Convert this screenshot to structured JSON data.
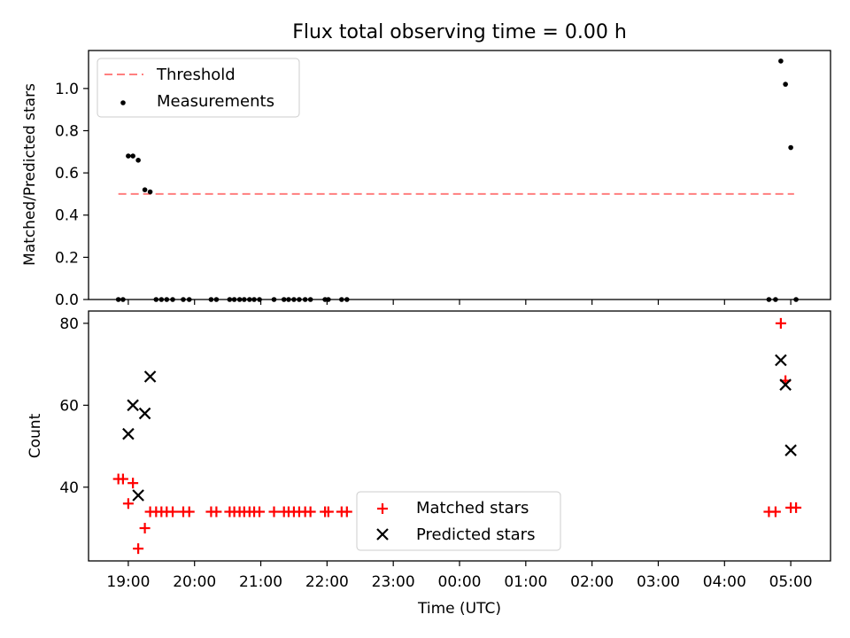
{
  "title": "Flux total observing time = 0.00 h",
  "colors": {
    "threshold": "#ff7f7f",
    "measurements": "#000000",
    "matched": "#ff0000",
    "predicted": "#000000"
  },
  "chart_data": [
    {
      "type": "scatter",
      "ylabel": "Matched/Predicted stars",
      "xlim": [
        18.4,
        29.6
      ],
      "ylim": [
        0,
        1.18
      ],
      "yticks": [
        "0.0",
        "0.2",
        "0.4",
        "0.6",
        "0.8",
        "1.0"
      ],
      "ytick_values": [
        0,
        0.2,
        0.4,
        0.6,
        0.8,
        1.0
      ],
      "legend": {
        "placement": "top-left",
        "entries": [
          "Threshold",
          "Measurements"
        ]
      },
      "threshold": {
        "name": "Threshold",
        "value": 0.5,
        "x_range": [
          18.85,
          29.05
        ]
      },
      "series": [
        {
          "name": "Measurements",
          "x": [
            18.85,
            18.92,
            19.0,
            19.07,
            19.15,
            19.25,
            19.33,
            19.42,
            19.5,
            19.58,
            19.67,
            19.83,
            19.92,
            20.25,
            20.33,
            20.53,
            20.6,
            20.68,
            20.75,
            20.83,
            20.9,
            20.98,
            21.2,
            21.35,
            21.42,
            21.5,
            21.58,
            21.67,
            21.75,
            21.97,
            22.02,
            22.22,
            22.3,
            28.67,
            28.77,
            28.85,
            28.92,
            29.0,
            29.08
          ],
          "y": [
            0,
            0,
            0.68,
            0.68,
            0.66,
            0.52,
            0.51,
            0,
            0,
            0,
            0,
            0,
            0,
            0,
            0,
            0,
            0,
            0,
            0,
            0,
            0,
            0,
            0,
            0,
            0,
            0,
            0,
            0,
            0,
            0,
            0,
            0,
            0,
            0,
            0,
            1.13,
            1.02,
            0.72,
            0
          ]
        }
      ]
    },
    {
      "type": "scatter",
      "ylabel": "Count",
      "xlabel": "Time (UTC)",
      "xlim": [
        18.4,
        29.6
      ],
      "ylim": [
        22,
        83
      ],
      "yticks": [
        "40",
        "60",
        "80"
      ],
      "ytick_values": [
        40,
        60,
        80
      ],
      "xticks": [
        "19:00",
        "20:00",
        "21:00",
        "22:00",
        "23:00",
        "00:00",
        "01:00",
        "02:00",
        "03:00",
        "04:00",
        "05:00"
      ],
      "xtick_values": [
        19,
        20,
        21,
        22,
        23,
        24,
        25,
        26,
        27,
        28,
        29
      ],
      "legend": {
        "placement": "lower-center",
        "entries": [
          "Matched stars",
          "Predicted stars"
        ]
      },
      "series": [
        {
          "name": "Matched stars",
          "x": [
            18.85,
            18.92,
            19.0,
            19.07,
            19.15,
            19.25,
            19.33,
            19.42,
            19.5,
            19.58,
            19.67,
            19.83,
            19.92,
            20.25,
            20.33,
            20.53,
            20.6,
            20.68,
            20.75,
            20.83,
            20.9,
            20.98,
            21.2,
            21.35,
            21.42,
            21.5,
            21.58,
            21.67,
            21.75,
            21.97,
            22.02,
            22.22,
            22.3,
            28.67,
            28.77,
            28.85,
            28.92,
            29.0,
            29.08
          ],
          "y": [
            42,
            42,
            36,
            41,
            25,
            30,
            34,
            34,
            34,
            34,
            34,
            34,
            34,
            34,
            34,
            34,
            34,
            34,
            34,
            34,
            34,
            34,
            34,
            34,
            34,
            34,
            34,
            34,
            34,
            34,
            34,
            34,
            34,
            34,
            34,
            80,
            66,
            35,
            35
          ]
        },
        {
          "name": "Predicted stars",
          "x": [
            19.0,
            19.07,
            19.15,
            19.25,
            19.33,
            28.85,
            28.92,
            29.0
          ],
          "y": [
            53,
            60,
            38,
            58,
            67,
            71,
            65,
            49
          ]
        }
      ]
    }
  ]
}
